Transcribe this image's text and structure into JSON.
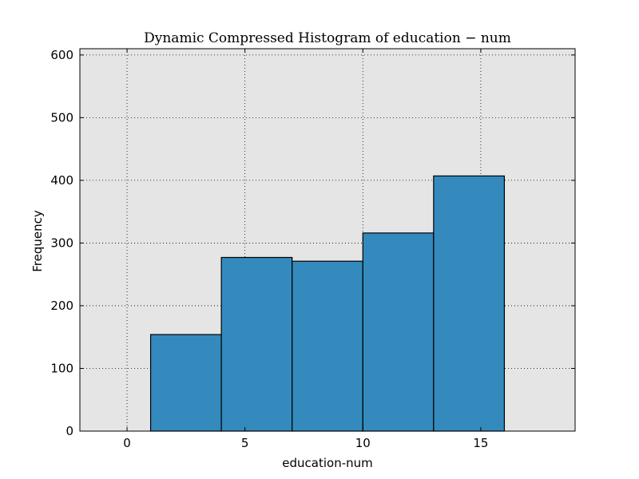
{
  "chart_data": {
    "type": "bar",
    "title": "Dynamic Compressed Histogram of education − num",
    "xlabel": "education-num",
    "ylabel": "Frequency",
    "xlim": [
      -2,
      19
    ],
    "ylim": [
      0,
      610
    ],
    "xticks": [
      0,
      5,
      10,
      15
    ],
    "yticks": [
      0,
      100,
      200,
      300,
      400,
      500,
      600
    ],
    "grid": true,
    "bins": [
      {
        "start": 1,
        "end": 4,
        "value": 154
      },
      {
        "start": 4,
        "end": 7,
        "value": 277
      },
      {
        "start": 7,
        "end": 10,
        "value": 271
      },
      {
        "start": 10,
        "end": 13,
        "value": 316
      },
      {
        "start": 13,
        "end": 16,
        "value": 407
      }
    ],
    "colors": {
      "bar": "#348abd",
      "plot_bg": "#e5e5e5",
      "edge": "#000000"
    }
  }
}
